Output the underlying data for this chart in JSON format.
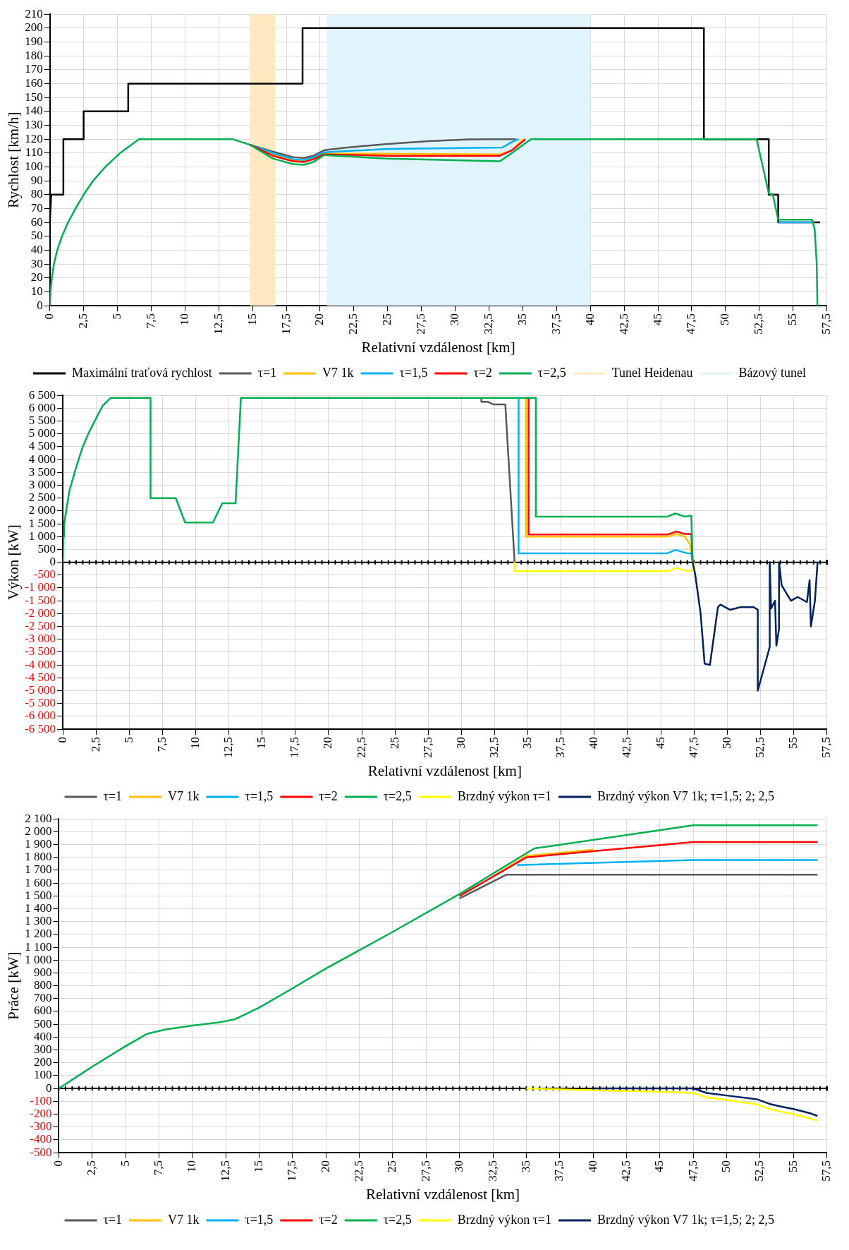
{
  "chart_data": [
    {
      "type": "line",
      "xlabel": "Relativní vzdálenost [km]",
      "ylabel": "Rychlost [km/h]",
      "xlim": [
        0,
        57.5
      ],
      "xticks": [
        0,
        {
          "value": 2.5,
          "label": "2,5"
        },
        5,
        {
          "value": 7.5,
          "label": "7,5"
        },
        10,
        {
          "value": 12.5,
          "label": "12,5"
        },
        15,
        {
          "value": 17.5,
          "label": "17,5"
        },
        20,
        {
          "value": 22.5,
          "label": "22,5"
        },
        25,
        {
          "value": 27.5,
          "label": "27,5"
        },
        30,
        {
          "value": 32.5,
          "label": "32,5"
        },
        35,
        {
          "value": 37.5,
          "label": "37,5"
        },
        40,
        {
          "value": 42.5,
          "label": "42,5"
        },
        45,
        {
          "value": 47.5,
          "label": "47,5"
        },
        50,
        {
          "value": 52.5,
          "label": "52,5"
        },
        55,
        {
          "value": 57.5,
          "label": "57,5"
        }
      ],
      "ylim": [
        0,
        210
      ],
      "yticks": [
        0,
        10,
        20,
        30,
        40,
        50,
        60,
        70,
        80,
        90,
        100,
        110,
        120,
        130,
        140,
        150,
        160,
        170,
        180,
        190,
        200,
        210
      ],
      "grid": true,
      "legend": "bottom",
      "bands": [
        {
          "axis": "x",
          "from": 14.8,
          "to": 16.7,
          "label": "Tunel Heidenau",
          "color": "#fdeac2"
        },
        {
          "axis": "x",
          "from": 20.5,
          "to": 40,
          "label": "Bázový tunel",
          "color": "#e2f4fb"
        }
      ],
      "series": [
        {
          "name": "Maximální traťová rychlost",
          "color": "#000000",
          "x": [
            0,
            0.1,
            1,
            1,
            2.5,
            2.5,
            5.8,
            5.8,
            18.7,
            18.7,
            48.4,
            48.4,
            53.2,
            53.2,
            53.9,
            53.9,
            57
          ],
          "values": [
            60,
            80,
            80,
            120,
            120,
            140,
            140,
            160,
            160,
            200,
            200,
            120,
            120,
            80,
            80,
            60,
            60
          ]
        },
        {
          "name": "τ=1",
          "color": "#595959",
          "x": [
            14.8,
            16.5,
            18,
            18.8,
            19.5,
            20.3,
            22,
            25,
            28,
            31,
            33,
            34.5
          ],
          "values": [
            116,
            111,
            107,
            106.5,
            108,
            112,
            114,
            116.5,
            118.5,
            119.8,
            120,
            120
          ]
        },
        {
          "name": "V7 1k",
          "color": "#ffc000",
          "x": [
            14.8,
            16.5,
            18,
            18.8,
            19.5,
            20.3,
            25,
            33.3,
            34.2,
            35
          ],
          "values": [
            116,
            109,
            104.5,
            104,
            106,
            109.5,
            109.5,
            109,
            112,
            120
          ]
        },
        {
          "name": "τ=1,5",
          "color": "#00b0f0",
          "x": [
            14.8,
            16.5,
            18,
            18.8,
            19.5,
            20.3,
            25,
            33.5,
            34.2,
            34.7,
            null,
            53.9,
            56.4
          ],
          "values": [
            116,
            110,
            105.5,
            105,
            107,
            110.5,
            113,
            114,
            118,
            120,
            null,
            60,
            60
          ]
        },
        {
          "name": "τ=2",
          "color": "#ff0000",
          "x": [
            14.8,
            16.5,
            18,
            18.8,
            19.5,
            20.3,
            25,
            33.3,
            34.2,
            35.2
          ],
          "values": [
            116,
            108,
            104,
            103.5,
            105.5,
            109,
            108,
            108,
            112,
            120
          ]
        },
        {
          "name": "τ=2,5",
          "color": "#00b050",
          "x": [
            0,
            0.05,
            0.15,
            0.3,
            0.55,
            0.9,
            1.35,
            1.9,
            2.5,
            3.2,
            4.1,
            5.2,
            6.6,
            13.5,
            14.8,
            16.5,
            18,
            18.8,
            19.5,
            20.3,
            25,
            33.3,
            34.2,
            35.6,
            52.3,
            53.2,
            53.5,
            53.9,
            56.4,
            56.6,
            56.75,
            56.8
          ],
          "values": [
            0,
            10,
            20,
            30,
            40,
            50,
            60,
            70,
            80,
            90,
            100,
            110,
            120,
            120,
            116,
            106,
            102,
            101.5,
            103.5,
            108.5,
            106,
            104,
            110,
            120,
            120,
            81,
            80,
            62,
            62,
            55,
            30,
            0
          ]
        }
      ]
    },
    {
      "type": "line",
      "xlabel": "Relativní vzdálenost [km]",
      "ylabel": "Výkon [kW]",
      "xlim": [
        0,
        57.5
      ],
      "xticks": [
        0,
        {
          "value": 2.5,
          "label": "2,5"
        },
        5,
        {
          "value": 7.5,
          "label": "7,5"
        },
        10,
        {
          "value": 12.5,
          "label": "12,5"
        },
        15,
        {
          "value": 17.5,
          "label": "17,5"
        },
        20,
        {
          "value": 22.5,
          "label": "22,5"
        },
        25,
        {
          "value": 27.5,
          "label": "27,5"
        },
        30,
        {
          "value": 32.5,
          "label": "32,5"
        },
        35,
        {
          "value": 37.5,
          "label": "37,5"
        },
        40,
        {
          "value": 42.5,
          "label": "42,5"
        },
        45,
        {
          "value": 47.5,
          "label": "47,5"
        },
        50,
        {
          "value": 52.5,
          "label": "52,5"
        },
        55,
        {
          "value": 57.5,
          "label": "57,5"
        }
      ],
      "ylim": [
        -6500,
        6500
      ],
      "yticks": [
        {
          "value": -6500,
          "label": "-6 500"
        },
        {
          "value": -6000,
          "label": "-6 000"
        },
        {
          "value": -5500,
          "label": "-5 500"
        },
        {
          "value": -5000,
          "label": "-5 000"
        },
        {
          "value": -4500,
          "label": "-4 500"
        },
        {
          "value": -4000,
          "label": "-4 000"
        },
        {
          "value": -3500,
          "label": "-3 500"
        },
        {
          "value": -3000,
          "label": "-3 000"
        },
        {
          "value": -2500,
          "label": "-2 500"
        },
        {
          "value": -2000,
          "label": "-2 000"
        },
        {
          "value": -1500,
          "label": "-1 500"
        },
        {
          "value": -1000,
          "label": "-1 000"
        },
        -500,
        0,
        500,
        {
          "value": 1000,
          "label": "1 000"
        },
        {
          "value": 1500,
          "label": "1 500"
        },
        {
          "value": 2000,
          "label": "2 000"
        },
        {
          "value": 2500,
          "label": "2 500"
        },
        {
          "value": 3000,
          "label": "3 000"
        },
        {
          "value": 3500,
          "label": "3 500"
        },
        {
          "value": 4000,
          "label": "4 000"
        },
        {
          "value": 4500,
          "label": "4 500"
        },
        {
          "value": 5000,
          "label": "5 000"
        },
        {
          "value": 5500,
          "label": "5 500"
        },
        {
          "value": 6000,
          "label": "6 000"
        },
        {
          "value": 6500,
          "label": "6 500"
        }
      ],
      "grid": true,
      "legend": "bottom",
      "series": [
        {
          "name": "τ=1",
          "color": "#595959",
          "x": [
            31.5,
            31.5,
            32,
            32.4,
            33.3,
            34
          ],
          "values": [
            6400,
            6250,
            6250,
            6150,
            6150,
            0
          ]
        },
        {
          "name": "V7 1k",
          "color": "#ffc000",
          "x": [
            34.85,
            34.85,
            45.5,
            46.2,
            46.8,
            47.2,
            47.4
          ],
          "values": [
            6400,
            1000,
            1000,
            1100,
            1000,
            700,
            0
          ]
        },
        {
          "name": "τ=1,5",
          "color": "#00b0f0",
          "x": [
            34.3,
            34.3,
            45.5,
            46.1,
            47,
            47.3,
            47.4
          ],
          "values": [
            6400,
            350,
            350,
            480,
            350,
            350,
            0
          ]
        },
        {
          "name": "τ=2",
          "color": "#ff0000",
          "x": [
            35.05,
            35.05,
            45.5,
            46.2,
            46.8,
            47.3,
            47.4
          ],
          "values": [
            6400,
            1080,
            1080,
            1200,
            1100,
            1100,
            0
          ]
        },
        {
          "name": "τ=2,5",
          "color": "#00b050",
          "x": [
            0,
            0.05,
            0.1,
            0.5,
            1,
            1.5,
            2,
            2.5,
            3,
            3.6,
            6.6,
            6.6,
            8.5,
            9.2,
            11.3,
            12,
            13,
            13.4,
            35.6,
            35.6,
            45.5,
            46.1,
            46.8,
            47.3,
            47.4
          ],
          "values": [
            0,
            1000,
            1500,
            2800,
            3700,
            4500,
            5100,
            5600,
            6100,
            6400,
            6400,
            2500,
            2500,
            1550,
            1550,
            2300,
            2300,
            6400,
            6400,
            1780,
            1780,
            1900,
            1780,
            1820,
            0
          ]
        },
        {
          "name": "Brzdný výkon τ=1",
          "color": "#ffff00",
          "x": [
            34,
            34,
            45.5,
            46.2,
            47,
            47.4,
            47.5
          ],
          "values": [
            0,
            -350,
            -350,
            -220,
            -350,
            -300,
            0
          ]
        },
        {
          "name": "Brzdný výkon V7 1k; τ=1,5; 2; 2,5",
          "color": "#002060",
          "x": [
            47.4,
            47.6,
            48,
            48.3,
            48.7,
            49.3,
            49.5,
            50.2,
            51,
            52,
            52.3,
            52.3,
            53.2,
            53.2,
            53.3,
            53.6,
            53.7,
            53.9,
            53.9,
            54.1,
            54.8,
            55.3,
            56,
            56.2,
            56.3,
            56.6,
            56.8
          ],
          "values": [
            0,
            -500,
            -2000,
            -3950,
            -4000,
            -1750,
            -1650,
            -1850,
            -1750,
            -1750,
            -1850,
            -5000,
            -3300,
            0,
            -1800,
            -1500,
            -3250,
            -2600,
            0,
            -900,
            -1500,
            -1350,
            -1550,
            -700,
            -2500,
            -1500,
            0
          ]
        }
      ]
    },
    {
      "type": "line",
      "xlabel": "Relativní vzdálenost [km]",
      "ylabel": "Práce [kW]",
      "xlim": [
        0,
        57.5
      ],
      "xticks": [
        0,
        {
          "value": 2.5,
          "label": "2,5"
        },
        5,
        {
          "value": 7.5,
          "label": "7,5"
        },
        10,
        {
          "value": 12.5,
          "label": "12,5"
        },
        15,
        {
          "value": 17.5,
          "label": "17,5"
        },
        20,
        {
          "value": 22.5,
          "label": "22,5"
        },
        25,
        {
          "value": 27.5,
          "label": "27,5"
        },
        30,
        {
          "value": 32.5,
          "label": "32,5"
        },
        35,
        {
          "value": 37.5,
          "label": "37,5"
        },
        40,
        {
          "value": 42.5,
          "label": "42,5"
        },
        45,
        {
          "value": 47.5,
          "label": "47,5"
        },
        50,
        {
          "value": 52.5,
          "label": "52,5"
        },
        55,
        {
          "value": 57.5,
          "label": "57,5"
        }
      ],
      "ylim": [
        -500,
        2100
      ],
      "yticks": [
        -500,
        -400,
        -300,
        -200,
        -100,
        0,
        100,
        200,
        300,
        400,
        500,
        600,
        700,
        800,
        900,
        {
          "value": 1000,
          "label": "1 000"
        },
        {
          "value": 1100,
          "label": "1 100"
        },
        {
          "value": 1200,
          "label": "1 200"
        },
        {
          "value": 1300,
          "label": "1 300"
        },
        {
          "value": 1400,
          "label": "1 400"
        },
        {
          "value": 1500,
          "label": "1 500"
        },
        {
          "value": 1600,
          "label": "1 600"
        },
        {
          "value": 1700,
          "label": "1 700"
        },
        {
          "value": 1800,
          "label": "1 800"
        },
        {
          "value": 1900,
          "label": "1 900"
        },
        {
          "value": 2000,
          "label": "2 000"
        },
        {
          "value": 2100,
          "label": "2 100"
        }
      ],
      "grid": true,
      "legend": "bottom",
      "series": [
        {
          "name": "τ=1",
          "color": "#595959",
          "x": [
            30,
            33.5,
            56.8
          ],
          "values": [
            1480,
            1665,
            1665
          ]
        },
        {
          "name": "V7 1k",
          "color": "#ffc000",
          "x": [
            32.5,
            35,
            40
          ],
          "values": [
            1650,
            1812,
            1860
          ]
        },
        {
          "name": "τ=1,5",
          "color": "#00b0f0",
          "x": [
            34.3,
            47.5,
            56.8
          ],
          "values": [
            1740,
            1780,
            1780
          ]
        },
        {
          "name": "τ=2",
          "color": "#ff0000",
          "x": [
            30,
            35,
            47.5,
            56.8
          ],
          "values": [
            1500,
            1800,
            1920,
            1920
          ]
        },
        {
          "name": "τ=2,5",
          "color": "#00b050",
          "x": [
            0,
            2.5,
            5,
            6.6,
            8,
            10,
            12,
            13.2,
            15,
            17.5,
            20,
            25,
            30,
            35.6,
            47.5,
            56.8
          ],
          "values": [
            0,
            170,
            330,
            425,
            460,
            490,
            515,
            540,
            630,
            780,
            935,
            1220,
            1515,
            1870,
            2050,
            2050
          ]
        },
        {
          "name": "Brzdný výkon τ=1",
          "color": "#ffff00",
          "x": [
            35,
            40,
            45,
            47.5,
            48.5,
            50,
            52.3,
            53.2,
            54,
            55,
            56.8
          ],
          "values": [
            0,
            -15,
            -25,
            -35,
            -70,
            -90,
            -125,
            -160,
            -180,
            -200,
            -250
          ]
        },
        {
          "name": "Brzdný výkon V7 1k; τ=1,5; 2; 2,5",
          "color": "#002060",
          "x": [
            40,
            47.5,
            48.5,
            50,
            52.3,
            53.2,
            54,
            55,
            56.3,
            56.8
          ],
          "values": [
            0,
            0,
            -35,
            -55,
            -85,
            -120,
            -140,
            -160,
            -195,
            -215
          ]
        }
      ]
    }
  ]
}
